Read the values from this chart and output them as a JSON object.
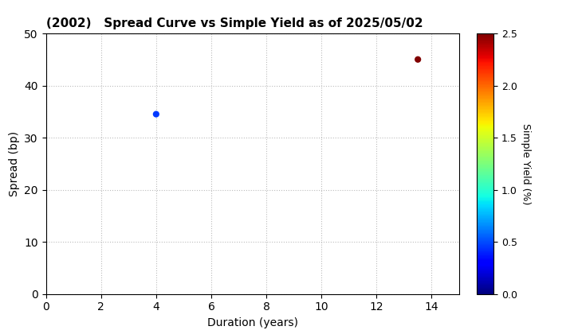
{
  "title": "(2002)   Spread Curve vs Simple Yield as of 2025/05/02",
  "xlabel": "Duration (years)",
  "ylabel": "Spread (bp)",
  "xlim": [
    0,
    15
  ],
  "ylim": [
    0,
    50
  ],
  "xticks": [
    0,
    2,
    4,
    6,
    8,
    10,
    12,
    14
  ],
  "yticks": [
    0,
    10,
    20,
    30,
    40,
    50
  ],
  "colorbar_label": "Simple Yield (%)",
  "colorbar_vmin": 0.0,
  "colorbar_vmax": 2.5,
  "colorbar_ticks": [
    0.0,
    0.5,
    1.0,
    1.5,
    2.0,
    2.5
  ],
  "points": [
    {
      "duration": 4.0,
      "spread": 34.5,
      "simple_yield": 0.45
    },
    {
      "duration": 13.5,
      "spread": 45.0,
      "simple_yield": 2.5
    }
  ],
  "marker_size": 35,
  "background_color": "#ffffff",
  "grid_color": "#bbbbbb",
  "title_fontsize": 11,
  "axis_label_fontsize": 10,
  "colorbar_labelsize": 9,
  "cmap": "jet"
}
